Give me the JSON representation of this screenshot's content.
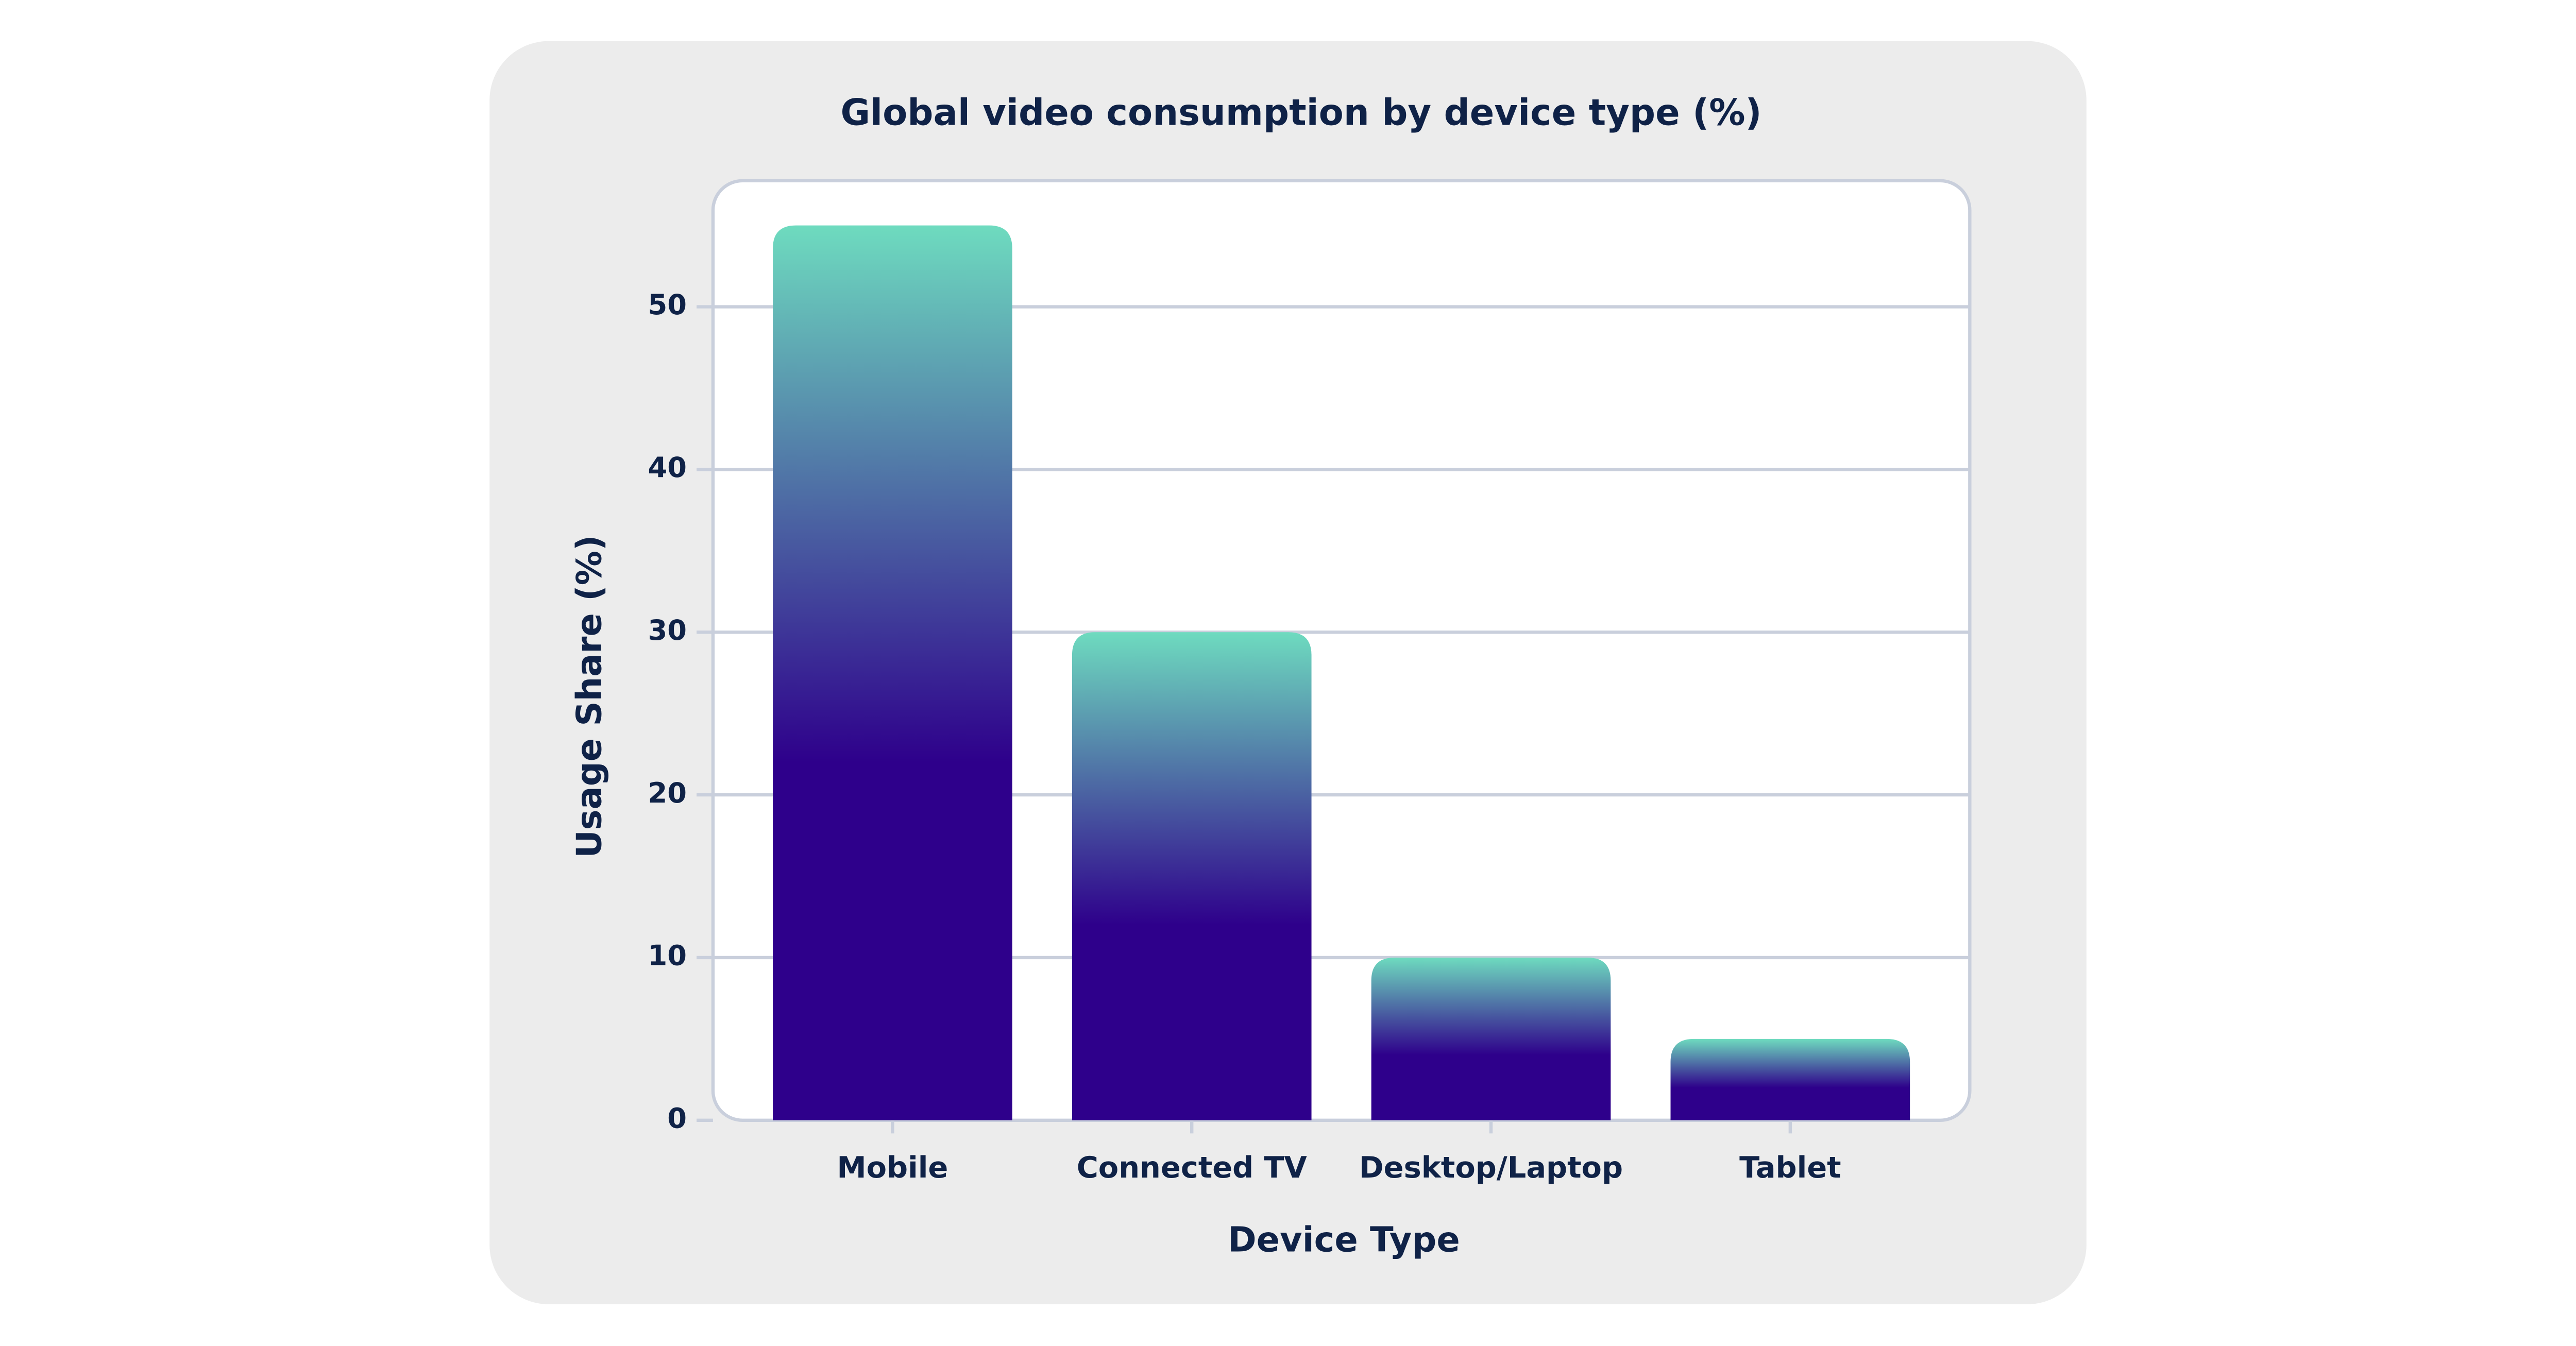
{
  "chart_data": {
    "type": "bar",
    "title": "Global video consumption by device type (%)",
    "x_label": "Device Type",
    "y_label": "Usage Share (%)",
    "categories": [
      "Mobile",
      "Connected TV",
      "Desktop/Laptop",
      "Tablet"
    ],
    "values": [
      55,
      30,
      10,
      5
    ],
    "color": "#2e008b",
    "gradient_top_color": "#6edbbf",
    "ylim": [
      0,
      57.75
    ],
    "yticks": [
      0,
      10,
      20,
      30,
      40,
      50
    ],
    "grid": true
  }
}
